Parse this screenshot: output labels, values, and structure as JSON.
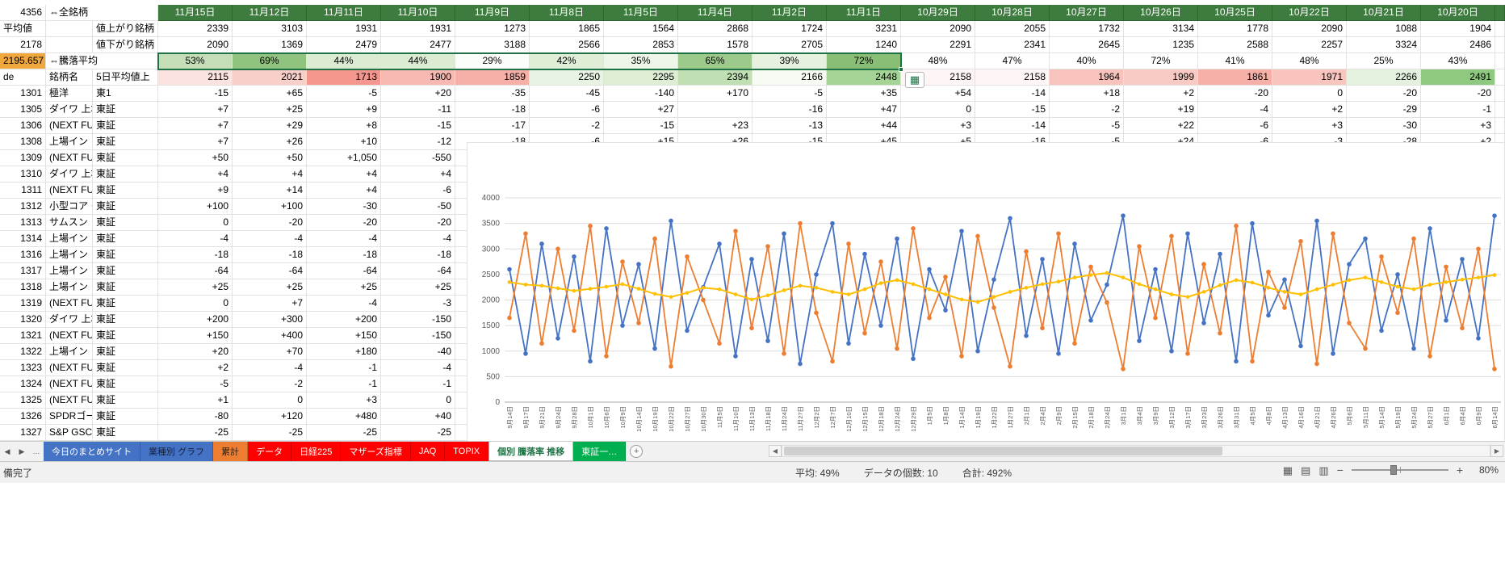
{
  "corner": {
    "a1": "4356",
    "b1": "⇔全銘柄",
    "a2": "平均値",
    "c2": "値上がり銘柄",
    "a3": "2178",
    "c3": "値下がり銘柄",
    "a4": "2195.657",
    "b4": "⇔騰落平均",
    "a4_bg": "#efa73e",
    "a5": "de",
    "b5": "銘柄名",
    "c5": "5日平均値上"
  },
  "dates": [
    "11月15日",
    "11月12日",
    "11月11日",
    "11月10日",
    "11月9日",
    "11月8日",
    "11月5日",
    "11月4日",
    "11月2日",
    "11月1日",
    "10月29日",
    "10月28日",
    "10月27日",
    "10月26日",
    "10月25日",
    "10月22日",
    "10月21日",
    "10月20日"
  ],
  "rising": {
    "values": [
      "2339",
      "3103",
      "1931",
      "1931",
      "1273",
      "1865",
      "1564",
      "2868",
      "1724",
      "3231",
      "2090",
      "2055",
      "1732",
      "3134",
      "1778",
      "2090",
      "1088",
      "1904"
    ]
  },
  "falling": {
    "values": [
      "2090",
      "1369",
      "2479",
      "2477",
      "3188",
      "2566",
      "2853",
      "1578",
      "2705",
      "1240",
      "2291",
      "2341",
      "2645",
      "1235",
      "2588",
      "2257",
      "3324",
      "2486"
    ]
  },
  "ratio": {
    "values": [
      "53%",
      "69%",
      "44%",
      "44%",
      "29%",
      "42%",
      "35%",
      "65%",
      "39%",
      "72%",
      "48%",
      "47%",
      "40%",
      "72%",
      "41%",
      "48%",
      "25%",
      "43%"
    ],
    "colors": [
      "#c6deb8",
      "#90c47e",
      "#dcecd2",
      "#dcecd2",
      "#fbfdfa",
      "#e0eed7",
      "#eef6e9",
      "#9cca8b",
      "#e7f1e0",
      "#88bf74",
      "#ffffff",
      "#ffffff",
      "#ffffff",
      "#ffffff",
      "#ffffff",
      "#ffffff",
      "#ffffff",
      "#ffffff"
    ]
  },
  "avg5": {
    "values": [
      "2115",
      "2021",
      "1713",
      "1900",
      "1859",
      "2250",
      "2295",
      "2394",
      "2166",
      "2448",
      "2158",
      "2158",
      "1964",
      "1999",
      "1861",
      "1971",
      "2266",
      "2491"
    ],
    "colors": [
      "#fbe3e0",
      "#f9cfc9",
      "#f5978e",
      "#f7b9b1",
      "#f7b0a8",
      "#e8f3e3",
      "#ddeed5",
      "#c0dfb2",
      "#f6fbf4",
      "#a6d496",
      "#fdf6f5",
      "#fdf6f5",
      "#f8c3bc",
      "#f9cac3",
      "#f7b0a8",
      "#f8c4bd",
      "#e4f1de",
      "#8ec97f"
    ]
  },
  "stocks": [
    {
      "code": "1301",
      "name": "極洋",
      "market": "東1",
      "values": [
        "-15",
        "+65",
        "-5",
        "+20",
        "-35",
        "-45",
        "-140",
        "+170",
        "-5",
        "+35",
        "+54",
        "-14",
        "+18",
        "+2",
        "-20",
        "0",
        "-20",
        "-20"
      ]
    },
    {
      "code": "1305",
      "name": "ダイワ 上場",
      "market": "東証",
      "values": [
        "+7",
        "+25",
        "+9",
        "-11",
        "-18",
        "-6",
        "+27",
        "",
        "-16",
        "+47",
        "0",
        "-15",
        "-2",
        "+19",
        "-4",
        "+2",
        "-29",
        "-1"
      ]
    },
    {
      "code": "1306",
      "name": "(NEXT FU",
      "market": "東証",
      "values": [
        "+7",
        "+29",
        "+8",
        "-15",
        "-17",
        "-2",
        "-15",
        "+23",
        "-13",
        "+44",
        "+3",
        "-14",
        "-5",
        "+22",
        "-6",
        "+3",
        "-30",
        "+3"
      ]
    },
    {
      "code": "1308",
      "name": "上場イン",
      "market": "東証",
      "values": [
        "+7",
        "+26",
        "+10",
        "-12",
        "-18",
        "-6",
        "+15",
        "+26",
        "-15",
        "+45",
        "+5",
        "-16",
        "-5",
        "+24",
        "-6",
        "-3",
        "-28",
        "+2"
      ]
    },
    {
      "code": "1309",
      "name": "(NEXT FU",
      "market": "東証",
      "values": [
        "+50",
        "+50",
        "+1,050",
        "-550",
        "-400"
      ]
    },
    {
      "code": "1310",
      "name": "ダイワ 上場",
      "market": "東証",
      "values": [
        "+4",
        "+4",
        "+4",
        "+4",
        "+4"
      ]
    },
    {
      "code": "1311",
      "name": "(NEXT FU",
      "market": "東証",
      "values": [
        "+9",
        "+14",
        "+4",
        "-6",
        "-5"
      ]
    },
    {
      "code": "1312",
      "name": "小型コア・",
      "market": "東証",
      "values": [
        "+100",
        "+100",
        "-30",
        "-50",
        "-30"
      ]
    },
    {
      "code": "1313",
      "name": "サムスン",
      "market": "東証",
      "values": [
        "0",
        "-20",
        "-20",
        "-20",
        "-60"
      ]
    },
    {
      "code": "1314",
      "name": "上場イン",
      "market": "東証",
      "values": [
        "-4",
        "-4",
        "-4",
        "-4",
        "-4"
      ]
    },
    {
      "code": "1316",
      "name": "上場イン",
      "market": "東証",
      "values": [
        "-18",
        "-18",
        "-18",
        "-18",
        "-18"
      ]
    },
    {
      "code": "1317",
      "name": "上場イン",
      "market": "東証",
      "values": [
        "-64",
        "-64",
        "-64",
        "-64",
        "-64"
      ]
    },
    {
      "code": "1318",
      "name": "上場イン",
      "market": "東証",
      "values": [
        "+25",
        "+25",
        "+25",
        "+25",
        "+25"
      ]
    },
    {
      "code": "1319",
      "name": "(NEXT FU",
      "market": "東証",
      "values": [
        "0",
        "+7",
        "-4",
        "-3",
        "0"
      ]
    },
    {
      "code": "1320",
      "name": "ダイワ 上場",
      "market": "東証",
      "values": [
        "+200",
        "+300",
        "+200",
        "-150",
        "-250"
      ]
    },
    {
      "code": "1321",
      "name": "(NEXT FU",
      "market": "東証",
      "values": [
        "+150",
        "+400",
        "+150",
        "-150",
        "-200"
      ]
    },
    {
      "code": "1322",
      "name": "上場イン",
      "market": "東証",
      "values": [
        "+20",
        "+70",
        "+180",
        "-40",
        "-120"
      ]
    },
    {
      "code": "1323",
      "name": "(NEXT FU",
      "market": "東証",
      "values": [
        "+2",
        "-4",
        "-1",
        "-4",
        "+8"
      ]
    },
    {
      "code": "1324",
      "name": "(NEXT FU",
      "market": "東証",
      "values": [
        "-5",
        "-2",
        "-1",
        "-1",
        "+1"
      ]
    },
    {
      "code": "1325",
      "name": "(NEXT FU",
      "market": "東証",
      "values": [
        "+1",
        "0",
        "+3",
        "0",
        "+1"
      ]
    },
    {
      "code": "1326",
      "name": "SPDRゴー",
      "market": "東証",
      "values": [
        "-80",
        "+120",
        "+480",
        "+40",
        "-100"
      ]
    },
    {
      "code": "1327",
      "name": "S&P GSCI",
      "market": "東証",
      "values": [
        "-25",
        "-25",
        "-25",
        "-25",
        "-25"
      ]
    }
  ],
  "chart_data": {
    "type": "line",
    "title": "",
    "ylim": [
      0,
      4000
    ],
    "ytick": 500,
    "grid": true,
    "legend": "none",
    "x_labels": [
      "9月14日",
      "9月17日",
      "9月21日",
      "9月24日",
      "9月28日",
      "10月1日",
      "10月6日",
      "10月9日",
      "10月14日",
      "10月19日",
      "10月22日",
      "10月27日",
      "10月30日",
      "11月5日",
      "11月10日",
      "11月13日",
      "11月18日",
      "11月24日",
      "11月27日",
      "12月2日",
      "12月7日",
      "12月10日",
      "12月15日",
      "12月18日",
      "12月24日",
      "12月29日",
      "1月5日",
      "1月8日",
      "1月14日",
      "1月19日",
      "1月22日",
      "1月27日",
      "2月1日",
      "2月4日",
      "2月9日",
      "2月15日",
      "2月18日",
      "2月24日",
      "3月1日",
      "3月4日",
      "3月9日",
      "3月12日",
      "3月17日",
      "3月23日",
      "3月26日",
      "3月31日",
      "4月5日",
      "4月8日",
      "4月13日",
      "4月16日",
      "4月21日",
      "4月26日",
      "5月6日",
      "5月11日",
      "5月14日",
      "5月19日",
      "5月24日",
      "5月27日",
      "6月1日",
      "6月4日",
      "6月9日",
      "6月14日"
    ],
    "series": [
      {
        "name": "値上がり銘柄",
        "color": "#4472C4",
        "values": [
          2600,
          950,
          3100,
          1250,
          2850,
          800,
          3400,
          1500,
          2700,
          1050,
          3550,
          1400,
          2250,
          3100,
          900,
          2800,
          1200,
          3300,
          750,
          2500,
          3500,
          1150,
          2900,
          1500,
          3200,
          850,
          2600,
          1800,
          3350,
          1000,
          2400,
          3600,
          1300,
          2800,
          950,
          3100,
          1600,
          2300,
          3650,
          1200,
          2600,
          1000,
          3300,
          1550,
          2900,
          800,
          3500,
          1700,
          2400,
          1100,
          3550,
          950,
          2700,
          3200,
          1400,
          2500,
          1050,
          3400,
          1600,
          2800,
          1250,
          3650
        ]
      },
      {
        "name": "値下がり銘柄",
        "color": "#ED7D31",
        "values": [
          1650,
          3300,
          1150,
          3000,
          1400,
          3450,
          900,
          2750,
          1550,
          3200,
          700,
          2850,
          2000,
          1150,
          3350,
          1450,
          3050,
          950,
          3500,
          1750,
          800,
          3100,
          1350,
          2750,
          1050,
          3400,
          1650,
          2450,
          900,
          3250,
          1850,
          700,
          2950,
          1450,
          3300,
          1150,
          2650,
          1950,
          650,
          3050,
          1650,
          3250,
          950,
          2700,
          1350,
          3450,
          800,
          2550,
          1850,
          3150,
          750,
          3300,
          1550,
          1050,
          2850,
          1750,
          3200,
          900,
          2650,
          1450,
          3000,
          650
        ]
      },
      {
        "name": "5日平均",
        "color": "#FFC000",
        "values": [
          2350,
          2300,
          2280,
          2230,
          2180,
          2220,
          2260,
          2310,
          2220,
          2120,
          2060,
          2140,
          2240,
          2210,
          2110,
          2010,
          2090,
          2190,
          2280,
          2240,
          2160,
          2110,
          2210,
          2330,
          2390,
          2310,
          2210,
          2110,
          2010,
          1960,
          2060,
          2160,
          2240,
          2310,
          2360,
          2440,
          2490,
          2530,
          2440,
          2310,
          2210,
          2110,
          2060,
          2160,
          2290,
          2390,
          2340,
          2240,
          2160,
          2110,
          2210,
          2300,
          2390,
          2440,
          2350,
          2260,
          2210,
          2300,
          2350,
          2400,
          2440,
          2490
        ]
      }
    ]
  },
  "sheet_tabs": {
    "nav_prev": "◀",
    "nav_next": "▶",
    "overflow": "…",
    "add_button": "+",
    "tabs": [
      {
        "label": "今日のまとめサイト",
        "bg": "#4472C4",
        "fg": "#FFFFFF",
        "active": false
      },
      {
        "label": "業種別 グラフ",
        "bg": "#4472C4",
        "fg": "#14213d",
        "active": false
      },
      {
        "label": "累計",
        "bg": "#ED7D31",
        "fg": "#1F1F1F",
        "active": false
      },
      {
        "label": "データ",
        "bg": "#FF0000",
        "fg": "#FFFFFF",
        "active": false
      },
      {
        "label": "日経225",
        "bg": "#FF0000",
        "fg": "#FFFFFF",
        "active": false
      },
      {
        "label": "マザーズ指標",
        "bg": "#FF0000",
        "fg": "#FFFFFF",
        "active": false
      },
      {
        "label": "JAQ",
        "bg": "#FF0000",
        "fg": "#FFFFFF",
        "active": false
      },
      {
        "label": "TOPIX",
        "bg": "#FF0000",
        "fg": "#FFFFFF",
        "active": false
      },
      {
        "label": "個別 騰落率 推移",
        "bg": "#FFFFFF",
        "fg": "#217346",
        "active": true
      },
      {
        "label": "東証一…",
        "bg": "#00B050",
        "fg": "#FFFFFF",
        "active": false
      }
    ]
  },
  "status_bar": {
    "ready": "備完了",
    "average": "平均: 49%",
    "count": "データの個数: 10",
    "sum": "合計: 492%",
    "zoom_out": "−",
    "zoom_in": "+",
    "zoom_level": "80%"
  },
  "colors": {
    "header_green": "#3e7b3e",
    "selection_green": "#1e7145",
    "highlight_orange": "#efa73e"
  }
}
